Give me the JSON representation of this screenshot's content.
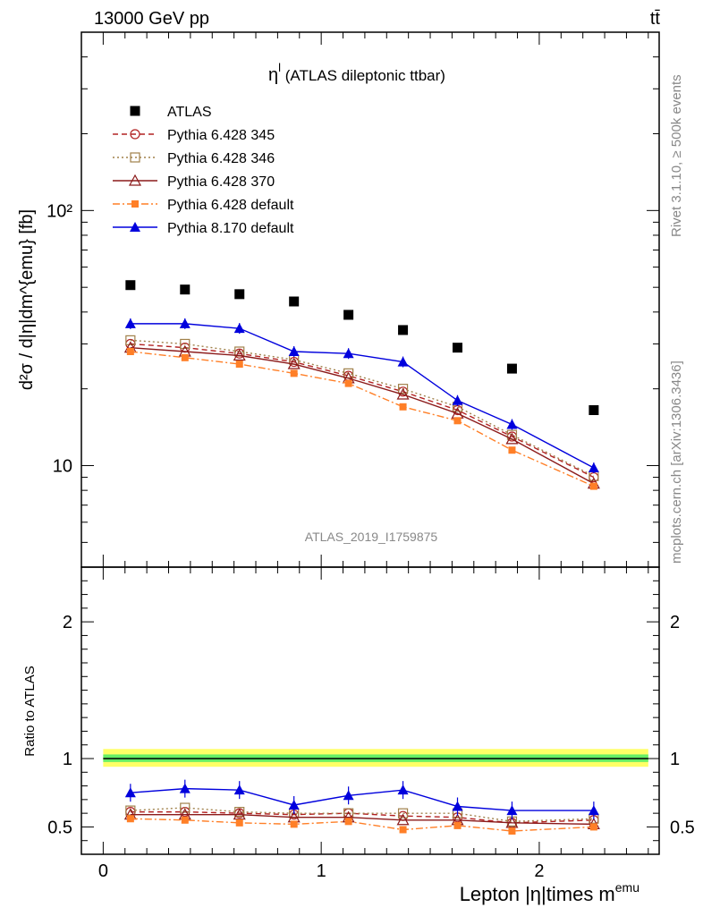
{
  "header": {
    "energy_label": "13000 GeV pp",
    "process_label": "tt̄"
  },
  "side_labels": {
    "rivet": "Rivet 3.1.10, ≥ 500k events",
    "source": "mcplots.cern.ch [arXiv:1306.3436]"
  },
  "analysis_id": "ATLAS_2019_I1759875",
  "colors": {
    "atlas": "#000000",
    "py345": "#b22222",
    "py346": "#a0804a",
    "py370": "#8b1a1a",
    "pydefault": "#ff7f27",
    "py8": "#0000dd",
    "band_outer": "#ffff66",
    "band_inner": "#66ee66"
  },
  "chart_data": [
    {
      "type": "scatter",
      "panel": "main",
      "title": "η (ATLAS dileptonic ttbar)",
      "title_superscript": "l",
      "ylabel": "d²σ / d|η|dm^{emu} [fb]",
      "yscale": "log",
      "ylim": [
        4.0,
        500
      ],
      "xlim": [
        -0.1,
        2.55
      ],
      "y_ticks": [
        "10",
        "10²"
      ],
      "legend_position": "top-left",
      "x": [
        0.125,
        0.375,
        0.625,
        0.875,
        1.125,
        1.375,
        1.625,
        1.875,
        2.25
      ],
      "series": [
        {
          "name": "ATLAS",
          "key": "atlas",
          "marker": "filled-square",
          "line": "none",
          "values": [
            51,
            49,
            47,
            44,
            39,
            34,
            29,
            24,
            16.5
          ]
        },
        {
          "name": "Pythia 6.428 345",
          "key": "py345",
          "marker": "open-circle",
          "line": "dashed",
          "values": [
            30,
            29,
            27.5,
            25.5,
            22.5,
            19.5,
            16.5,
            13.0,
            9.0
          ]
        },
        {
          "name": "Pythia 6.428 346",
          "key": "py346",
          "marker": "open-square",
          "line": "dotted",
          "values": [
            31,
            30,
            28,
            26,
            23,
            20,
            17,
            13.2,
            9.1
          ]
        },
        {
          "name": "Pythia 6.428 370",
          "key": "py370",
          "marker": "open-triangle",
          "line": "solid",
          "values": [
            29,
            28,
            27,
            25,
            22,
            19,
            16,
            12.7,
            8.5
          ]
        },
        {
          "name": "Pythia 6.428 default",
          "key": "pydefault",
          "marker": "filled-square-small",
          "line": "dashdot",
          "values": [
            28,
            26.5,
            25,
            23,
            21,
            17,
            15,
            11.5,
            8.3
          ]
        },
        {
          "name": "Pythia 8.170 default",
          "key": "py8",
          "marker": "filled-triangle",
          "line": "solid",
          "values": [
            36,
            36,
            34.5,
            28,
            27.5,
            25.5,
            18,
            14.5,
            9.8
          ]
        }
      ]
    },
    {
      "type": "line",
      "panel": "ratio",
      "ylabel": "Ratio to ATLAS",
      "xlabel": "Lepton |η|times m",
      "xlabel_superscript": "emu",
      "ylim": [
        0.3,
        2.4
      ],
      "xlim": [
        -0.1,
        2.55
      ],
      "x_ticks": [
        "0",
        "1",
        "2"
      ],
      "y_ticks": [
        "0.5",
        "1",
        "2"
      ],
      "band_outer": [
        0.94,
        1.07
      ],
      "band_inner": [
        0.975,
        1.03
      ],
      "x": [
        0.125,
        0.375,
        0.625,
        0.875,
        1.125,
        1.375,
        1.625,
        1.875,
        2.25
      ],
      "series": [
        {
          "name": "Pythia 6.428 345",
          "key": "py345",
          "values": [
            0.61,
            0.61,
            0.6,
            0.59,
            0.6,
            0.58,
            0.57,
            0.53,
            0.55
          ]
        },
        {
          "name": "Pythia 6.428 346",
          "key": "py346",
          "values": [
            0.62,
            0.64,
            0.61,
            0.6,
            0.6,
            0.6,
            0.6,
            0.54,
            0.56
          ]
        },
        {
          "name": "Pythia 6.428 370",
          "key": "py370",
          "values": [
            0.59,
            0.59,
            0.59,
            0.57,
            0.57,
            0.55,
            0.55,
            0.53,
            0.52
          ]
        },
        {
          "name": "Pythia 6.428 default",
          "key": "pydefault",
          "values": [
            0.56,
            0.55,
            0.53,
            0.52,
            0.54,
            0.48,
            0.51,
            0.47,
            0.5
          ]
        },
        {
          "name": "Pythia 8.170 default",
          "key": "py8",
          "values": [
            0.75,
            0.78,
            0.77,
            0.66,
            0.73,
            0.77,
            0.65,
            0.62,
            0.62
          ]
        }
      ]
    }
  ]
}
